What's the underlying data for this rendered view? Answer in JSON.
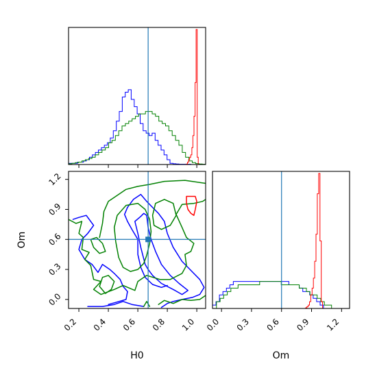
{
  "chart_data": {
    "type": "corner",
    "parameters": [
      "H0",
      "Om"
    ],
    "truths": {
      "H0": 0.67,
      "Om": 0.6
    },
    "ranges": {
      "H0": [
        0.13,
        1.06
      ],
      "Om": [
        -0.09,
        1.28
      ]
    },
    "ticks": {
      "H0": [
        0.2,
        0.4,
        0.6,
        0.8,
        1.0
      ],
      "Om": [
        0.0,
        0.3,
        0.6,
        0.9,
        1.2
      ]
    },
    "tick_labels": {
      "H0": [
        "0.2",
        "0.4",
        "0.6",
        "0.8",
        "1.0"
      ],
      "Om": [
        "0.0",
        "0.3",
        "0.6",
        "0.9",
        "1.2"
      ]
    },
    "series_colors": [
      "#0000ff",
      "#008000",
      "#ff0000"
    ],
    "truth_color": "#1f77b4",
    "histograms": {
      "H0": [
        {
          "color": "#0000ff",
          "edges": [
            0.13,
            0.96
          ],
          "counts": [
            0.5,
            0.5,
            0.5,
            1,
            1,
            1.5,
            2,
            3,
            4,
            5,
            6,
            7,
            8,
            9,
            11,
            14,
            18,
            22,
            28,
            30,
            31,
            27,
            24,
            21,
            17,
            14,
            13,
            12,
            13,
            10,
            8,
            6,
            4,
            2,
            0.5,
            0.3,
            0.2,
            0.1,
            0.1,
            0.1,
            0.1
          ]
        },
        {
          "color": "#008000",
          "edges": [
            0.13,
            1.06
          ],
          "counts": [
            0.3,
            0.5,
            0.8,
            1,
            1.5,
            2,
            2.5,
            3,
            4,
            5,
            6,
            7,
            9,
            10,
            12,
            14,
            16,
            17,
            18,
            19,
            20,
            21,
            21,
            22,
            22,
            21,
            20,
            18,
            17,
            16,
            14,
            12,
            10,
            8,
            5,
            3,
            1.5,
            0.8,
            0.4,
            0.2,
            0.1
          ]
        },
        {
          "color": "#ff0000",
          "edges": [
            0.93,
            1.01
          ],
          "counts": [
            0.2,
            1,
            2,
            3,
            4,
            7,
            12,
            20,
            34,
            56,
            3
          ]
        }
      ],
      "Om": [
        {
          "color": "#0000ff",
          "edges": [
            -0.09,
            1.02
          ],
          "counts": [
            1,
            2,
            4,
            5,
            6,
            7,
            8,
            8,
            8,
            8,
            8,
            8,
            8,
            8,
            8,
            8,
            8,
            8,
            8,
            8,
            8,
            8,
            7,
            7,
            7,
            6,
            5,
            5,
            4,
            3,
            2,
            1
          ]
        },
        {
          "color": "#008000",
          "edges": [
            -0.05,
            1.1
          ],
          "counts": [
            2,
            3,
            4,
            5,
            6,
            6,
            7,
            7,
            7,
            7,
            7,
            7,
            8,
            8,
            8,
            8,
            8,
            8,
            7,
            7,
            7,
            7,
            7,
            6,
            6,
            5,
            4,
            4,
            3,
            2,
            1,
            1
          ]
        },
        {
          "color": "#ff0000",
          "edges": [
            0.84,
            1.01
          ],
          "counts": [
            0.2,
            0.5,
            1,
            2,
            4,
            6,
            9,
            14,
            22,
            34,
            40,
            20,
            2
          ]
        }
      ]
    },
    "contours": [
      {
        "color": "#0000ff",
        "level": "outer",
        "points": [
          [
            0.16,
            0.8
          ],
          [
            0.2,
            0.82
          ],
          [
            0.25,
            0.84
          ],
          [
            0.3,
            0.74
          ],
          [
            0.26,
            0.66
          ],
          [
            0.22,
            0.6
          ],
          [
            0.2,
            0.5
          ],
          [
            0.24,
            0.4
          ],
          [
            0.29,
            0.35
          ],
          [
            0.33,
            0.27
          ],
          [
            0.36,
            0.35
          ],
          [
            0.41,
            0.3
          ],
          [
            0.44,
            0.26
          ],
          [
            0.48,
            0.2
          ],
          [
            0.5,
            0.13
          ],
          [
            0.53,
            0.08
          ],
          [
            0.52,
            0.0
          ],
          [
            0.45,
            -0.03
          ],
          [
            0.4,
            -0.05
          ]
        ]
      },
      {
        "color": "#0000ff",
        "level": "outer",
        "points": [
          [
            0.26,
            -0.07
          ],
          [
            0.36,
            -0.07
          ],
          [
            0.44,
            -0.05
          ],
          [
            0.5,
            -0.02
          ],
          [
            0.56,
            -0.05
          ],
          [
            0.64,
            -0.07
          ]
        ]
      },
      {
        "color": "#0000ff",
        "level": "outer",
        "points": [
          [
            0.76,
            -0.08
          ],
          [
            0.8,
            -0.04
          ],
          [
            0.84,
            -0.02
          ],
          [
            0.9,
            0.0
          ],
          [
            0.97,
            0.02
          ],
          [
            1.02,
            0.05
          ],
          [
            1.05,
            0.12
          ],
          [
            1.02,
            0.2
          ],
          [
            0.96,
            0.29
          ],
          [
            0.9,
            0.38
          ],
          [
            0.84,
            0.52
          ],
          [
            0.8,
            0.66
          ],
          [
            0.78,
            0.78
          ],
          [
            0.74,
            0.86
          ],
          [
            0.7,
            0.92
          ],
          [
            0.66,
            0.98
          ],
          [
            0.62,
            1.05
          ],
          [
            0.57,
            1.0
          ],
          [
            0.53,
            0.92
          ],
          [
            0.51,
            0.85
          ],
          [
            0.53,
            0.78
          ],
          [
            0.56,
            0.7
          ],
          [
            0.6,
            0.6
          ],
          [
            0.6,
            0.45
          ],
          [
            0.62,
            0.32
          ],
          [
            0.65,
            0.22
          ],
          [
            0.7,
            0.15
          ],
          [
            0.76,
            0.12
          ],
          [
            0.8,
            0.14
          ]
        ]
      },
      {
        "color": "#0000ff",
        "level": "inner",
        "points": [
          [
            0.65,
            0.35
          ],
          [
            0.62,
            0.52
          ],
          [
            0.6,
            0.66
          ],
          [
            0.58,
            0.78
          ],
          [
            0.62,
            0.83
          ],
          [
            0.64,
            0.86
          ],
          [
            0.66,
            0.84
          ],
          [
            0.67,
            0.72
          ],
          [
            0.69,
            0.6
          ],
          [
            0.72,
            0.48
          ],
          [
            0.76,
            0.35
          ],
          [
            0.82,
            0.24
          ],
          [
            0.88,
            0.16
          ],
          [
            0.94,
            0.09
          ],
          [
            0.9,
            0.05
          ],
          [
            0.84,
            0.1
          ],
          [
            0.76,
            0.16
          ],
          [
            0.7,
            0.24
          ],
          [
            0.67,
            0.3
          ],
          [
            0.65,
            0.35
          ]
        ]
      },
      {
        "color": "#008000",
        "level": "outer",
        "points": [
          [
            0.13,
            0.8
          ],
          [
            0.18,
            0.76
          ],
          [
            0.22,
            0.78
          ],
          [
            0.2,
            0.66
          ],
          [
            0.23,
            0.62
          ],
          [
            0.22,
            0.5
          ],
          [
            0.27,
            0.47
          ],
          [
            0.24,
            0.4
          ],
          [
            0.28,
            0.34
          ],
          [
            0.3,
            0.2
          ],
          [
            0.35,
            0.18
          ],
          [
            0.3,
            0.1
          ],
          [
            0.35,
            0.05
          ],
          [
            0.44,
            0.1
          ],
          [
            0.5,
            0.14
          ],
          [
            0.58,
            0.09
          ],
          [
            0.6,
            0.18
          ],
          [
            0.66,
            0.24
          ],
          [
            0.75,
            0.2
          ],
          [
            0.82,
            0.2
          ],
          [
            0.9,
            0.26
          ],
          [
            0.93,
            0.34
          ],
          [
            0.92,
            0.45
          ],
          [
            0.96,
            0.48
          ],
          [
            0.98,
            0.56
          ],
          [
            0.93,
            0.62
          ],
          [
            0.9,
            0.72
          ],
          [
            0.86,
            0.85
          ],
          [
            0.9,
            0.95
          ],
          [
            0.98,
            0.96
          ],
          [
            1.04,
            0.98
          ],
          [
            1.06,
            1.0
          ]
        ]
      },
      {
        "color": "#008000",
        "level": "outer",
        "points": [
          [
            0.34,
            0.62
          ],
          [
            0.36,
            0.76
          ],
          [
            0.37,
            0.88
          ],
          [
            0.4,
            0.98
          ],
          [
            0.47,
            1.05
          ],
          [
            0.52,
            1.1
          ],
          [
            0.6,
            1.13
          ],
          [
            0.68,
            1.15
          ],
          [
            0.78,
            1.18
          ],
          [
            0.92,
            1.19
          ],
          [
            1.06,
            1.16
          ]
        ]
      },
      {
        "color": "#008000",
        "level": "inner",
        "points": [
          [
            0.45,
            0.58
          ],
          [
            0.44,
            0.72
          ],
          [
            0.46,
            0.84
          ],
          [
            0.52,
            0.94
          ],
          [
            0.6,
            0.96
          ],
          [
            0.65,
            0.9
          ],
          [
            0.68,
            0.8
          ],
          [
            0.69,
            0.68
          ],
          [
            0.68,
            0.56
          ],
          [
            0.66,
            0.44
          ],
          [
            0.64,
            0.36
          ],
          [
            0.6,
            0.3
          ],
          [
            0.55,
            0.28
          ],
          [
            0.5,
            0.32
          ],
          [
            0.47,
            0.42
          ],
          [
            0.45,
            0.58
          ]
        ]
      },
      {
        "color": "#008000",
        "level": "inner",
        "points": [
          [
            0.7,
            0.84
          ],
          [
            0.72,
            0.96
          ],
          [
            0.78,
            1.0
          ],
          [
            0.84,
            0.96
          ],
          [
            0.86,
            0.84
          ],
          [
            0.82,
            0.74
          ],
          [
            0.76,
            0.7
          ],
          [
            0.71,
            0.74
          ],
          [
            0.7,
            0.84
          ]
        ]
      },
      {
        "color": "#008000",
        "level": "inner",
        "points": [
          [
            0.28,
            0.6
          ],
          [
            0.3,
            0.52
          ],
          [
            0.34,
            0.46
          ],
          [
            0.38,
            0.48
          ],
          [
            0.36,
            0.56
          ],
          [
            0.32,
            0.62
          ],
          [
            0.28,
            0.6
          ]
        ]
      },
      {
        "color": "#008000",
        "level": "inner",
        "points": [
          [
            0.36,
            0.22
          ],
          [
            0.34,
            0.13
          ],
          [
            0.38,
            0.06
          ],
          [
            0.42,
            0.1
          ],
          [
            0.44,
            0.18
          ],
          [
            0.4,
            0.24
          ],
          [
            0.36,
            0.22
          ]
        ]
      },
      {
        "color": "#008000",
        "level": "outer",
        "points": [
          [
            0.64,
            -0.07
          ],
          [
            0.66,
            -0.02
          ],
          [
            0.68,
            -0.07
          ]
        ]
      },
      {
        "color": "#008000",
        "level": "outer",
        "points": [
          [
            0.74,
            -0.05
          ],
          [
            0.78,
            -0.01
          ],
          [
            0.84,
            -0.04
          ],
          [
            0.9,
            0.0
          ],
          [
            0.96,
            -0.01
          ],
          [
            1.02,
            0.0
          ],
          [
            1.06,
            0.04
          ]
        ]
      },
      {
        "color": "#ff0000",
        "level": "outer",
        "points": [
          [
            0.93,
            1.03
          ],
          [
            0.99,
            1.03
          ],
          [
            1.0,
            0.98
          ],
          [
            0.99,
            0.9
          ],
          [
            0.98,
            0.84
          ],
          [
            0.96,
            0.86
          ],
          [
            0.94,
            0.9
          ],
          [
            0.93,
            0.96
          ],
          [
            0.93,
            1.03
          ]
        ]
      }
    ],
    "truth_marker": {
      "H0": 0.67,
      "Om": 0.6
    }
  }
}
